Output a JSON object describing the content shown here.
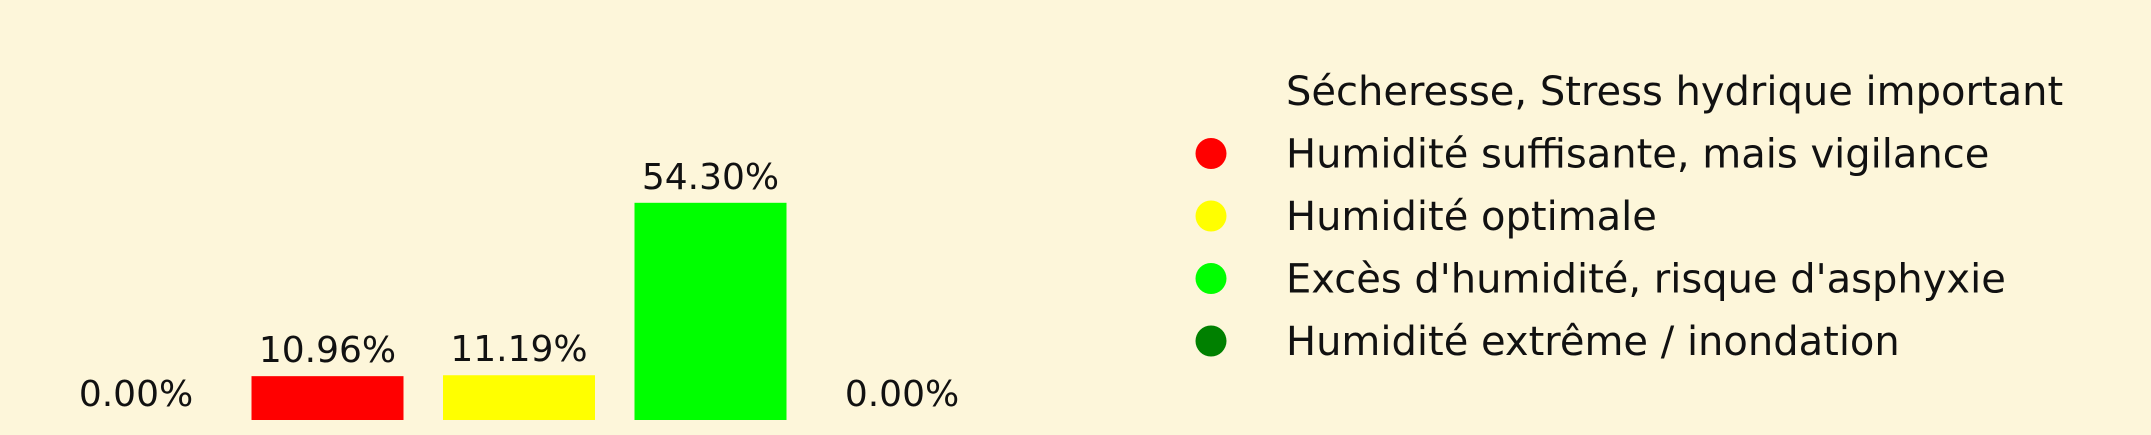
{
  "chart_data": {
    "type": "bar",
    "categories": [
      "Sécheresse, Stress hydrique important",
      "Humidité suffisante, mais vigilance",
      "Humidité optimale",
      "Excès d'humidité, risque d'asphyxie",
      "Humidité extrême / inondation"
    ],
    "values": [
      0.0,
      10.96,
      11.19,
      54.3,
      0.0
    ],
    "value_labels": [
      "0.00%",
      "10.96%",
      "11.19%",
      "54.30%",
      "0.00%"
    ],
    "ylim": [
      0,
      100
    ],
    "colors": [
      "#fdf6da",
      "#ff0000",
      "#ffff00",
      "#00ff00",
      "#008000"
    ],
    "grid": false,
    "legend_position": "right",
    "legend": [
      {
        "label": "Sécheresse, Stress hydrique important",
        "color": "#fdf6da"
      },
      {
        "label": "Humidité suffisante, mais vigilance",
        "color": "#ff0000"
      },
      {
        "label": "Humidité optimale",
        "color": "#ffff00"
      },
      {
        "label": "Excès d'humidité, risque d'asphyxie",
        "color": "#00ff00"
      },
      {
        "label": "Humidité extrême / inondation",
        "color": "#008000"
      }
    ]
  }
}
